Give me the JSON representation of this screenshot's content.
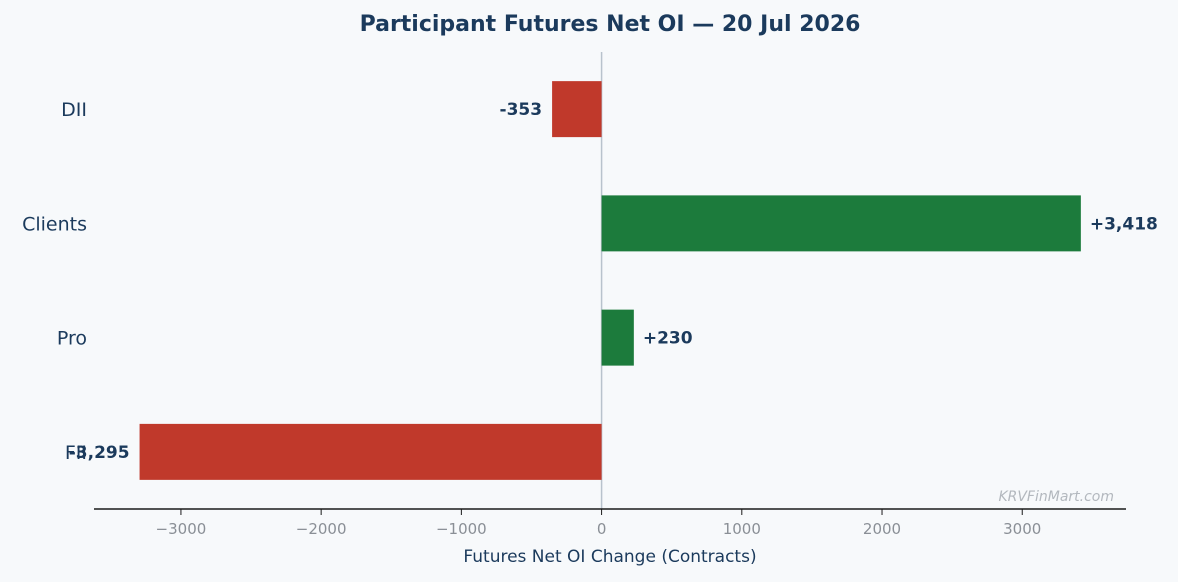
{
  "chart_data": {
    "type": "bar",
    "orientation": "horizontal",
    "title": "Participant Futures Net OI — 20 Jul 2026",
    "xlabel": "Futures Net OI Change (Contracts)",
    "ylabel": "",
    "categories": [
      "DII",
      "Clients",
      "Pro",
      "FII"
    ],
    "values": [
      -353,
      3418,
      230,
      -3295
    ],
    "data_labels": [
      "-353",
      "+3,418",
      "+230",
      "-3,295"
    ],
    "xlim": [
      -3620,
      3740
    ],
    "xticks": [
      -3000,
      -2000,
      -1000,
      0,
      1000,
      2000,
      3000
    ],
    "xtick_labels": [
      "−3000",
      "−2000",
      "−1000",
      "0",
      "1000",
      "2000",
      "3000"
    ],
    "grid": false,
    "legend": "none",
    "colors": {
      "positive": "#1c7b3c",
      "negative": "#c0392b",
      "zero_line": "#b8c2cc",
      "axis": "#1a1a1a",
      "background": "#f7f9fb"
    }
  },
  "watermark": "KRVFinMart.com"
}
